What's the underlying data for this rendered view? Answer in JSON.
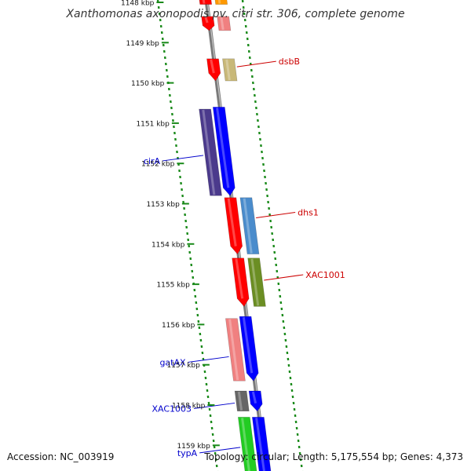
{
  "title": "Xanthomonas axonopodis pv. citri str. 306, complete genome",
  "footer": {
    "accession": "Accession: NC_003919",
    "topology": "Topology: circular; Length: 5,175,554 bp; Genes: 4,373"
  },
  "colors": {
    "backbone": "#8c8c8c",
    "tick_green": "#1a8a1a",
    "forward_label": "#cc0000",
    "reverse_label": "#0000cc"
  },
  "ruler": {
    "start_kbp": 1148,
    "end_kbp": 1159,
    "labels": [
      "1148 kbp",
      "1149 kbp",
      "1150 kbp",
      "1151 kbp",
      "1152 kbp",
      "1153 kbp",
      "1154 kbp",
      "1155 kbp",
      "1156 kbp",
      "1157 kbp",
      "1158 kbp",
      "1159 kbp"
    ]
  },
  "genes": [
    {
      "name": "",
      "color": "#ff9900",
      "track": 2,
      "start": 1147.8,
      "end": 1148.05,
      "arrow": false
    },
    {
      "name": "",
      "color": "#ff0000",
      "track": 1,
      "start": 1147.8,
      "end": 1148.05,
      "arrow": false
    },
    {
      "name": "",
      "color": "#ff0000",
      "track": 1,
      "start": 1148.35,
      "end": 1148.7,
      "arrow": true
    },
    {
      "name": "",
      "color": "#f08080",
      "track": 2,
      "start": 1148.35,
      "end": 1148.7,
      "arrow": false
    },
    {
      "name": "dsbB",
      "color": "#c8b878",
      "track": 2,
      "start": 1149.4,
      "end": 1149.95,
      "arrow": false
    },
    {
      "name": "",
      "color": "#ff0000",
      "track": 1,
      "start": 1149.4,
      "end": 1149.95,
      "arrow": true
    },
    {
      "name": "cirA",
      "color": "#4b3a8c",
      "track": 0,
      "start": 1150.65,
      "end": 1152.8,
      "arrow": false
    },
    {
      "name": "",
      "color": "#0000ff",
      "track": 1,
      "start": 1150.6,
      "end": 1152.8,
      "arrow": true
    },
    {
      "name": "dhs1",
      "color": "#4a8ccc",
      "track": 2,
      "start": 1152.85,
      "end": 1154.25,
      "arrow": false
    },
    {
      "name": "",
      "color": "#ff0000",
      "track": 1,
      "start": 1152.85,
      "end": 1154.25,
      "arrow": true
    },
    {
      "name": "XAC1001",
      "color": "#6b8e23",
      "track": 2,
      "start": 1154.35,
      "end": 1155.55,
      "arrow": false
    },
    {
      "name": "",
      "color": "#ff0000",
      "track": 1,
      "start": 1154.35,
      "end": 1155.55,
      "arrow": true
    },
    {
      "name": "gatAX",
      "color": "#f08080",
      "track": 0,
      "start": 1155.85,
      "end": 1157.4,
      "arrow": false
    },
    {
      "name": "",
      "color": "#0000ff",
      "track": 1,
      "start": 1155.8,
      "end": 1157.4,
      "arrow": true
    },
    {
      "name": "XAC1003",
      "color": "#666666",
      "track": 0,
      "start": 1157.65,
      "end": 1158.15,
      "arrow": false
    },
    {
      "name": "",
      "color": "#0000ff",
      "track": 1,
      "start": 1157.65,
      "end": 1158.15,
      "arrow": true
    },
    {
      "name": "typA",
      "color": "#22cc22",
      "track": 0,
      "start": 1158.3,
      "end": 1159.9,
      "arrow": false
    },
    {
      "name": "",
      "color": "#0000ff",
      "track": 1,
      "start": 1158.3,
      "end": 1159.9,
      "arrow": true
    }
  ],
  "callouts": [
    {
      "name": "dsbB",
      "side": "right",
      "kbp": 1149.6,
      "color": "#cc0000"
    },
    {
      "name": "cirA",
      "side": "left",
      "kbp": 1151.8,
      "color": "#0000cc"
    },
    {
      "name": "dhs1",
      "side": "right",
      "kbp": 1153.35,
      "color": "#cc0000"
    },
    {
      "name": "XAC1001",
      "side": "right",
      "kbp": 1154.9,
      "color": "#cc0000"
    },
    {
      "name": "gatAX",
      "side": "left",
      "kbp": 1156.8,
      "color": "#0000cc"
    },
    {
      "name": "XAC1003",
      "side": "left",
      "kbp": 1157.95,
      "color": "#0000cc"
    },
    {
      "name": "typA",
      "side": "left",
      "kbp": 1159.05,
      "color": "#0000cc"
    }
  ]
}
